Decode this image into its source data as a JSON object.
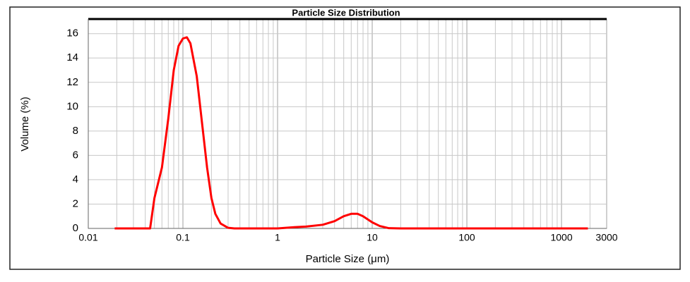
{
  "chart_data": {
    "type": "line",
    "title": "Particle Size Distribution",
    "x_label": "Particle Size (μm)",
    "y_label": "Volume (%)",
    "x_scale": "log",
    "x": [
      0.019,
      0.045,
      0.05,
      0.06,
      0.07,
      0.08,
      0.09,
      0.1,
      0.11,
      0.12,
      0.14,
      0.16,
      0.18,
      0.2,
      0.22,
      0.25,
      0.3,
      0.35,
      1,
      1.5,
      2,
      3,
      4,
      5,
      6,
      7,
      8,
      10,
      12,
      15,
      20,
      100,
      1000,
      1900
    ],
    "series": [
      {
        "name": "Volume",
        "color": "#ff0000",
        "values": [
          0,
          0,
          2.5,
          5,
          9,
          13,
          15,
          15.6,
          15.7,
          15.2,
          12.5,
          8.5,
          5,
          2.5,
          1.2,
          0.4,
          0.05,
          0,
          0,
          0.1,
          0.15,
          0.3,
          0.6,
          1.0,
          1.2,
          1.2,
          1.0,
          0.5,
          0.2,
          0.02,
          0,
          0,
          0,
          0
        ]
      }
    ],
    "xlim": [
      0.01,
      3000
    ],
    "xticks": [
      0.01,
      0.1,
      1,
      10,
      100,
      1000,
      3000
    ],
    "xminorticks": [
      0.02,
      0.03,
      0.04,
      0.05,
      0.06,
      0.07,
      0.08,
      0.09,
      0.2,
      0.3,
      0.4,
      0.5,
      0.6,
      0.7,
      0.8,
      0.9,
      2,
      3,
      4,
      5,
      6,
      7,
      8,
      9,
      20,
      30,
      40,
      50,
      60,
      70,
      80,
      90,
      200,
      300,
      400,
      500,
      600,
      700,
      800,
      900,
      2000
    ],
    "ylim": [
      0,
      17.2
    ],
    "yticks": [
      0,
      2,
      4,
      6,
      8,
      10,
      12,
      14,
      16
    ],
    "grid": true
  }
}
